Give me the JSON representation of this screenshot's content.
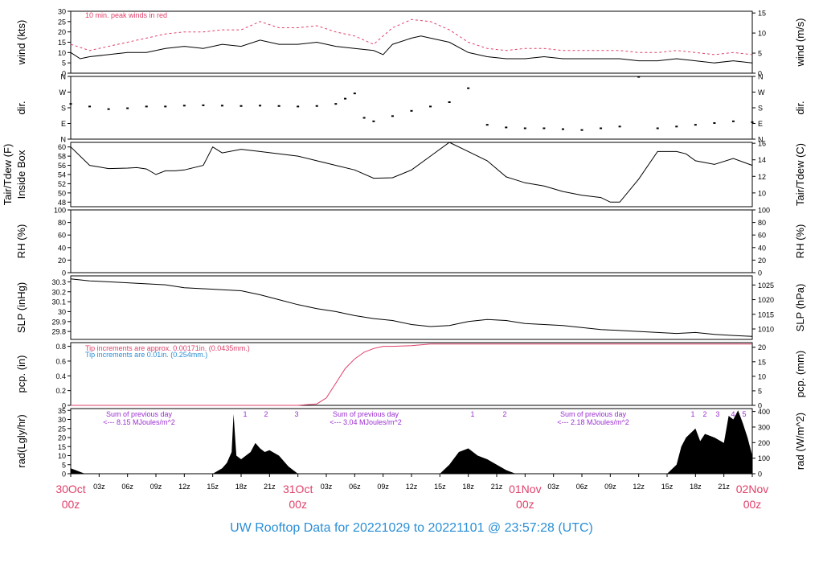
{
  "title": "UW Rooftop Data for 20221029  to  20221101 @ 23:57:28  (UTC)",
  "colors": {
    "peak": "#e0406a",
    "title": "#2a8fd6",
    "note_blue": "#2a8fd6",
    "purple": "#9b30d0",
    "date": "#e0406a"
  },
  "chart_data": {
    "type": "line",
    "time_axis": {
      "range_hours": [
        0,
        72
      ],
      "hour_ticks": [
        "03z",
        "06z",
        "09z",
        "12z",
        "15z",
        "18z",
        "21z",
        "03z",
        "06z",
        "09z",
        "12z",
        "15z",
        "18z",
        "21z",
        "03z",
        "06z",
        "09z",
        "12z",
        "15z",
        "18z",
        "21z"
      ],
      "date_labels": [
        {
          "day": "30Oct",
          "hour": "00z"
        },
        {
          "day": "31Oct",
          "hour": "00z"
        },
        {
          "day": "01Nov",
          "hour": "00z"
        },
        {
          "day": "02Nov",
          "hour": "00z"
        }
      ]
    },
    "panels": [
      {
        "id": "wind",
        "ylabel": "wind (kts)",
        "ylabel_right": "wind (m/s)",
        "ylim": [
          0,
          30
        ],
        "yticks": [
          0,
          5,
          10,
          15,
          20,
          25,
          30
        ],
        "right_lim": [
          0,
          15.43
        ],
        "right_ticks": [
          0,
          5,
          10,
          15
        ],
        "annotation": "10 min. peak winds in red",
        "series": [
          {
            "name": "wind",
            "x": [
              0,
              1,
              2,
              4,
              6,
              8,
              10,
              12,
              14,
              16,
              18,
              20,
              22,
              24,
              26,
              28,
              30,
              32,
              33,
              34,
              36,
              37,
              38,
              40,
              42,
              44,
              46,
              48,
              50,
              52,
              54,
              56,
              58,
              60,
              62,
              64,
              66,
              68,
              70,
              72
            ],
            "y": [
              10,
              7,
              8,
              9,
              10,
              10,
              12,
              13,
              12,
              14,
              13,
              16,
              14,
              14,
              15,
              13,
              12,
              11,
              9,
              14,
              17,
              18,
              17,
              15,
              10,
              8,
              7,
              7,
              8,
              7,
              7,
              7,
              7,
              6,
              6,
              7,
              6,
              5,
              6,
              5
            ]
          },
          {
            "name": "peak",
            "x": [
              0,
              2,
              4,
              6,
              8,
              10,
              12,
              14,
              16,
              18,
              20,
              22,
              24,
              26,
              28,
              30,
              32,
              34,
              36,
              38,
              40,
              42,
              44,
              46,
              48,
              50,
              52,
              54,
              56,
              58,
              60,
              62,
              64,
              66,
              68,
              70,
              72
            ],
            "y": [
              14,
              11,
              13,
              15,
              17,
              19,
              20,
              20,
              21,
              21,
              25,
              22,
              22,
              23,
              20,
              18,
              14,
              22,
              26,
              25,
              21,
              15,
              12,
              11,
              12,
              12,
              11,
              11,
              11,
              11,
              10,
              10,
              11,
              10,
              9,
              10,
              9
            ]
          }
        ]
      },
      {
        "id": "dir",
        "ylabel": "dir.",
        "ylabel_right": "dir.",
        "ylim": [
          0,
          360
        ],
        "yticks": [
          0,
          90,
          180,
          270,
          360
        ],
        "tick_labels": [
          "N",
          "E",
          "S",
          "W",
          "N"
        ],
        "series": [
          {
            "name": "dir",
            "x": [
              0,
              2,
              4,
              6,
              8,
              10,
              12,
              14,
              16,
              18,
              20,
              22,
              24,
              26,
              28,
              29,
              30,
              31,
              32,
              34,
              36,
              38,
              40,
              42,
              44,
              46,
              48,
              50,
              52,
              54,
              56,
              58,
              60,
              62,
              64,
              66,
              68,
              70,
              72
            ],
            "y": [
              200,
              185,
              170,
              175,
              185,
              185,
              190,
              192,
              190,
              188,
              190,
              188,
              185,
              188,
              200,
              230,
              260,
              120,
              100,
              130,
              160,
              185,
              210,
              290,
              80,
              65,
              60,
              60,
              55,
              50,
              60,
              70,
              355,
              60,
              70,
              80,
              90,
              100,
              95
            ]
          }
        ]
      },
      {
        "id": "temp",
        "ylabel": "Tair/Tdew (F)",
        "ylabel2": "Inside Box",
        "ylabel_right": "Tair/Tdew (C)",
        "ylim": [
          47,
          61
        ],
        "yticks": [
          48,
          50,
          52,
          54,
          56,
          58,
          60
        ],
        "right_ticks": [
          10,
          12,
          14,
          16
        ],
        "series": [
          {
            "name": "Tair",
            "x": [
              0,
              2,
              4,
              6,
              7,
              8,
              9,
              10,
              11,
              12,
              14,
              15,
              16,
              18,
              20,
              22,
              24,
              26,
              28,
              30,
              32,
              34,
              36,
              38,
              40,
              42,
              44,
              46,
              48,
              50,
              52,
              54,
              56,
              57,
              58,
              60,
              62,
              64,
              65,
              66,
              68,
              70,
              72
            ],
            "y": [
              60,
              56,
              55.3,
              55.4,
              55.5,
              55.2,
              54,
              54.8,
              54.8,
              55,
              56,
              60,
              58.7,
              59.5,
              59,
              58.5,
              58,
              57,
              56,
              55,
              53.2,
              53.3,
              55,
              58,
              61,
              59,
              57,
              53.5,
              52.2,
              51.5,
              50.3,
              49.5,
              49,
              48,
              48,
              53,
              59,
              59,
              58.5,
              57,
              56.2,
              57.5,
              56
            ]
          }
        ]
      },
      {
        "id": "rh",
        "ylabel": "RH (%)",
        "ylabel_right": "RH (%)",
        "ylim": [
          0,
          100
        ],
        "yticks": [
          0,
          20,
          40,
          60,
          80,
          100
        ],
        "series": []
      },
      {
        "id": "slp",
        "ylabel": "SLP (inHg)",
        "ylabel_right": "SLP (hPa)",
        "ylim": [
          29.72,
          30.36
        ],
        "yticks": [
          29.8,
          29.9,
          30.0,
          30.1,
          30.2,
          30.3
        ],
        "right_ticks": [
          1010,
          1015,
          1020,
          1025
        ],
        "series": [
          {
            "name": "SLP",
            "x": [
              0,
              2,
              4,
              6,
              8,
              10,
              12,
              14,
              16,
              18,
              20,
              22,
              24,
              26,
              28,
              30,
              32,
              34,
              36,
              38,
              40,
              42,
              44,
              46,
              48,
              50,
              52,
              54,
              56,
              58,
              60,
              62,
              64,
              66,
              68,
              70,
              72
            ],
            "y": [
              30.33,
              30.31,
              30.3,
              30.29,
              30.28,
              30.27,
              30.24,
              30.23,
              30.22,
              30.21,
              30.17,
              30.12,
              30.07,
              30.03,
              30.0,
              29.96,
              29.93,
              29.91,
              29.87,
              29.85,
              29.86,
              29.9,
              29.92,
              29.91,
              29.88,
              29.87,
              29.86,
              29.84,
              29.82,
              29.81,
              29.8,
              29.79,
              29.78,
              29.79,
              29.77,
              29.76,
              29.75
            ]
          }
        ]
      },
      {
        "id": "pcp",
        "ylabel": "pcp. (in)",
        "ylabel_right": "pcp. (mm)",
        "ylim": [
          0,
          0.85
        ],
        "yticks": [
          0,
          0.2,
          0.4,
          0.6,
          0.8
        ],
        "right_ticks": [
          0,
          5,
          10,
          15,
          20
        ],
        "notes": [
          "Tip increments are approx. 0.00171in. (0.0435mm.)",
          "Tip increments are 0.01in. (0.254mm.)"
        ],
        "series": [
          {
            "name": "pcp",
            "x": [
              0,
              24,
              26,
              27,
              28,
              29,
              30,
              31,
              32,
              33,
              34,
              36,
              38,
              40,
              72
            ],
            "y": [
              0,
              0,
              0.02,
              0.1,
              0.3,
              0.5,
              0.63,
              0.72,
              0.77,
              0.8,
              0.8,
              0.81,
              0.83,
              0.83,
              0.83
            ]
          }
        ]
      },
      {
        "id": "rad",
        "type": "area",
        "ylabel": "rad(Lgly/hr)",
        "ylabel_right": "rad (W/m^2)",
        "ylim": [
          0,
          36
        ],
        "yticks": [
          0,
          5,
          10,
          15,
          20,
          25,
          30,
          35
        ],
        "right_ticks": [
          0,
          100,
          200,
          300,
          400
        ],
        "sum_notes": [
          {
            "line1": "Sum of previous day",
            "line2": "<--- 8.15 MJoules/m^2"
          },
          {
            "line1": "Sum of previous day",
            "line2": "<--- 3.04 MJoules/m^2"
          },
          {
            "line1": "Sum of previous day",
            "line2": "<--- 2.18 MJoules/m^2"
          }
        ],
        "marks": [
          [
            "1",
            "2",
            "3"
          ],
          [
            "1",
            "2"
          ],
          [
            "1",
            "2",
            "3",
            "4",
            "5"
          ]
        ],
        "series": [
          {
            "name": "rad",
            "x": [
              0,
              1,
              1.5,
              15,
              16,
              16.5,
              17,
              17.2,
              17.5,
              18,
              19,
              19.5,
              20,
              20.5,
              21,
              22,
              23,
              24,
              39,
              40,
              41,
              42,
              43,
              44,
              45,
              46,
              47,
              48,
              63,
              64,
              64.5,
              65,
              66,
              66.5,
              67,
              68,
              69,
              69.5,
              70,
              70.5,
              71,
              71.5,
              72
            ],
            "y": [
              3,
              1,
              0,
              0,
              3,
              6,
              12,
              33,
              10,
              8,
              12,
              17,
              14,
              12,
              13,
              10,
              4,
              0,
              0,
              5,
              12,
              14,
              10,
              8,
              5,
              2,
              0,
              0,
              0,
              5,
              15,
              20,
              25,
              18,
              22,
              20,
              17,
              32,
              30,
              35,
              28,
              20,
              10
            ]
          }
        ]
      }
    ]
  }
}
